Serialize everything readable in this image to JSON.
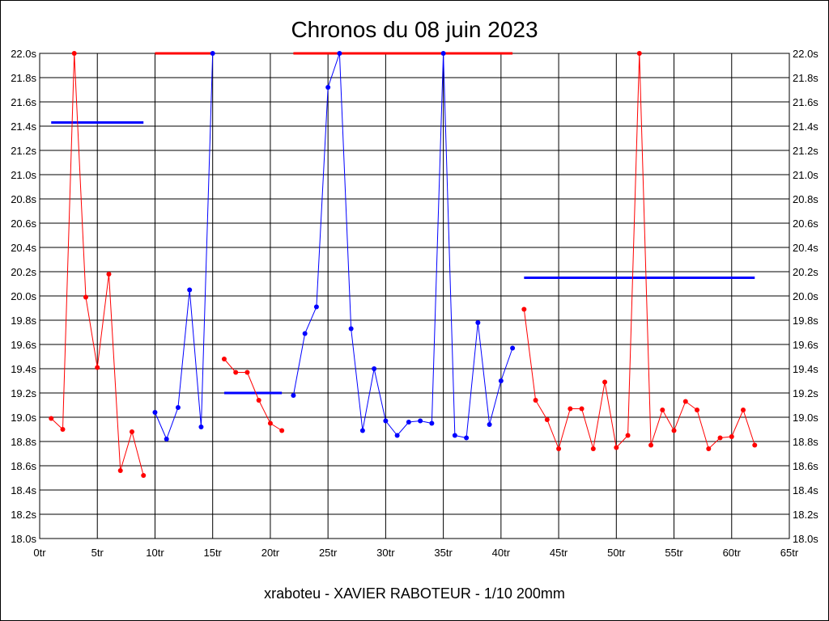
{
  "chart_data": {
    "type": "line",
    "title": "Chronos du 08 juin 2023",
    "footer": "xraboteu - XAVIER RABOTEUR - 1/10 200mm",
    "xlim": [
      0,
      65
    ],
    "ylim": [
      18.0,
      22.0
    ],
    "x_ticks": [
      0,
      5,
      10,
      15,
      20,
      25,
      30,
      35,
      40,
      45,
      50,
      55,
      60,
      65
    ],
    "x_tick_labels": [
      "0tr",
      "5tr",
      "10tr",
      "15tr",
      "20tr",
      "25tr",
      "30tr",
      "35tr",
      "40tr",
      "45tr",
      "50tr",
      "55tr",
      "60tr",
      "65tr"
    ],
    "y_ticks": [
      18.0,
      18.2,
      18.4,
      18.6,
      18.8,
      19.0,
      19.2,
      19.4,
      19.6,
      19.8,
      20.0,
      20.2,
      20.4,
      20.6,
      20.8,
      21.0,
      21.2,
      21.4,
      21.6,
      21.8,
      22.0
    ],
    "y_tick_labels": [
      "18.0s",
      "18.2s",
      "18.4s",
      "18.6s",
      "18.8s",
      "19.0s",
      "19.2s",
      "19.4s",
      "19.6s",
      "19.8s",
      "20.0s",
      "20.2s",
      "20.4s",
      "20.6s",
      "20.8s",
      "21.0s",
      "21.2s",
      "21.4s",
      "21.6s",
      "21.8s",
      "22.0s"
    ],
    "grid": true,
    "colors": {
      "red": "#ff0000",
      "blue": "#0000ff",
      "grid": "#000000",
      "avg_red": "#ff0000",
      "avg_blue": "#0000ff"
    },
    "series": [
      {
        "color": "#ff0000",
        "x": [
          1,
          2,
          3,
          4,
          5,
          6,
          7,
          8,
          9
        ],
        "y": [
          18.99,
          18.9,
          22.0,
          19.99,
          19.41,
          20.18,
          18.56,
          18.88,
          18.52
        ]
      },
      {
        "color": "#0000ff",
        "x": [
          10,
          11,
          12,
          13,
          14,
          15
        ],
        "y": [
          19.04,
          18.82,
          19.08,
          20.05,
          18.92,
          22.0
        ]
      },
      {
        "color": "#ff0000",
        "x": [
          16,
          17,
          18,
          19,
          20,
          21
        ],
        "y": [
          19.48,
          19.37,
          19.37,
          19.14,
          18.95,
          18.89
        ]
      },
      {
        "color": "#0000ff",
        "x": [
          22,
          23,
          24,
          25,
          26,
          27,
          28,
          29,
          30,
          31,
          32,
          33,
          34,
          35,
          36,
          37,
          38,
          39,
          40,
          41
        ],
        "y": [
          19.18,
          19.69,
          19.91,
          21.72,
          22.0,
          19.73,
          18.89,
          19.4,
          18.97,
          18.85,
          18.96,
          18.97,
          18.95,
          22.0,
          18.85,
          18.83,
          19.78,
          18.94,
          19.3,
          19.57
        ]
      },
      {
        "color": "#ff0000",
        "x": [
          42,
          43,
          44,
          45,
          46,
          47,
          48,
          49,
          50,
          51,
          52,
          53,
          54,
          55,
          56,
          57,
          58,
          59,
          60,
          61,
          62
        ],
        "y": [
          19.89,
          19.14,
          18.98,
          18.74,
          19.07,
          19.07,
          18.74,
          19.29,
          18.75,
          18.85,
          22.0,
          18.77,
          19.06,
          18.89,
          19.13,
          19.06,
          18.74,
          18.83,
          18.84,
          19.06,
          18.77
        ]
      }
    ],
    "segments": [
      {
        "color": "#0000ff",
        "x": [
          1,
          9
        ],
        "y": 21.43
      },
      {
        "color": "#ff0000",
        "x": [
          10,
          15
        ],
        "y": 22.0
      },
      {
        "color": "#0000ff",
        "x": [
          16,
          21
        ],
        "y": 19.2
      },
      {
        "color": "#ff0000",
        "x": [
          22,
          41
        ],
        "y": 22.0
      },
      {
        "color": "#0000ff",
        "x": [
          42,
          62
        ],
        "y": 20.15
      }
    ]
  }
}
